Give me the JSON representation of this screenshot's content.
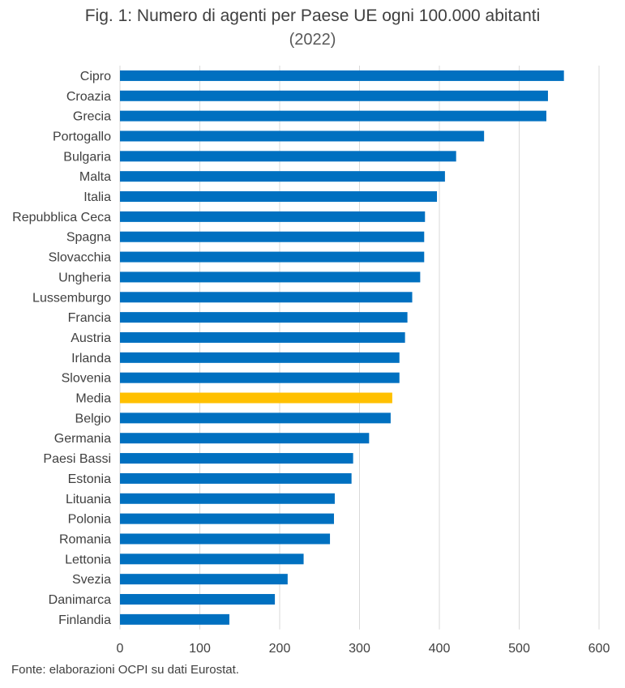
{
  "title": "Fig. 1: Numero di agenti per Paese UE ogni 100.000 abitanti",
  "subtitle": "(2022)",
  "source": "Fonte: elaborazioni OCPI su dati Eurostat.",
  "colors": {
    "bar": "#0070C0",
    "highlight": "#FFC000",
    "grid": "#D9D9D9"
  },
  "chart_data": {
    "type": "bar",
    "orientation": "horizontal",
    "categories": [
      "Cipro",
      "Croazia",
      "Grecia",
      "Portogallo",
      "Bulgaria",
      "Malta",
      "Italia",
      "Repubblica Ceca",
      "Spagna",
      "Slovacchia",
      "Ungheria",
      "Lussemburgo",
      "Francia",
      "Austria",
      "Irlanda",
      "Slovenia",
      "Media",
      "Belgio",
      "Germania",
      "Paesi Bassi",
      "Estonia",
      "Lituania",
      "Polonia",
      "Romania",
      "Lettonia",
      "Svezia",
      "Danimarca",
      "Finlandia"
    ],
    "values": [
      556,
      536,
      534,
      456,
      421,
      407,
      397,
      382,
      381,
      381,
      376,
      366,
      360,
      357,
      350,
      350,
      341,
      339,
      312,
      292,
      290,
      269,
      268,
      263,
      230,
      210,
      194,
      137
    ],
    "highlight_category": "Media",
    "xlim": [
      0,
      600
    ],
    "xticks": [
      0,
      100,
      200,
      300,
      400,
      500,
      600
    ],
    "grid": "vertical",
    "legend": "none"
  }
}
